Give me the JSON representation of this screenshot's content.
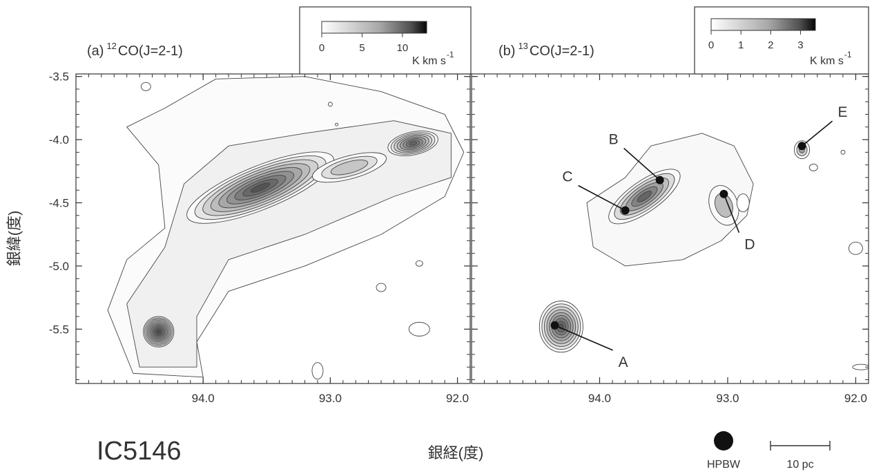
{
  "figure": {
    "object_name": "IC5146",
    "xlabel": "銀経(度)",
    "ylabel": "銀緯(度)",
    "beam_label": "HPBW",
    "scale_bar_label": "10 pc"
  },
  "chart_data": [
    {
      "type": "heatmap",
      "panel": "(a)",
      "title_prefix": "(a)",
      "title_sup": "12",
      "title_main": "CO(J=2-1)",
      "xlim": [
        95.0,
        91.9
      ],
      "ylim": [
        -5.93,
        -3.48
      ],
      "x_ticks": [
        94.0,
        93.0,
        92.0
      ],
      "x_tick_labels": [
        "94.0",
        "93.0",
        "92.0"
      ],
      "y_ticks": [
        -3.5,
        -4.0,
        -4.5,
        -5.0,
        -5.5
      ],
      "y_tick_labels": [
        "-3.5",
        "-4.0",
        "-4.5",
        "-5.0",
        "-5.5"
      ],
      "colorbar": {
        "min": 0,
        "max": 13,
        "ticks": [
          "0",
          "5",
          "10"
        ],
        "unit_text": "K km s",
        "unit_sup": "-1"
      },
      "contour_levels": 12,
      "emission_peaks": [
        {
          "l": 94.35,
          "b": -5.52,
          "peak": 12.5
        },
        {
          "l": 93.55,
          "b": -4.36,
          "peak": 12.0
        },
        {
          "l": 92.35,
          "b": -4.02,
          "peak": 9.0
        },
        {
          "l": 92.85,
          "b": -4.2,
          "peak": 4.0
        }
      ],
      "grid": false
    },
    {
      "type": "heatmap",
      "panel": "(b)",
      "title_prefix": "(b)",
      "title_sup": "13",
      "title_main": "CO(J=2-1)",
      "xlim": [
        95.0,
        91.9
      ],
      "ylim": [
        -5.93,
        -3.48
      ],
      "x_ticks": [
        94.0,
        93.0,
        92.0
      ],
      "x_tick_labels": [
        "94.0",
        "93.0",
        "92.0"
      ],
      "y_ticks": [
        -3.5,
        -4.0,
        -4.5,
        -5.0,
        -5.5
      ],
      "colorbar": {
        "min": 0,
        "max": 3.5,
        "ticks": [
          "0",
          "1",
          "2",
          "3"
        ],
        "unit_text": "K km s",
        "unit_sup": "-1"
      },
      "contour_levels": 9,
      "cores": [
        {
          "name": "A",
          "l": 94.35,
          "b": -5.47
        },
        {
          "name": "B",
          "l": 93.53,
          "b": -4.32
        },
        {
          "name": "C",
          "l": 93.8,
          "b": -4.56
        },
        {
          "name": "D",
          "l": 93.03,
          "b": -4.43
        },
        {
          "name": "E",
          "l": 92.42,
          "b": -4.05
        }
      ],
      "grid": false
    }
  ]
}
